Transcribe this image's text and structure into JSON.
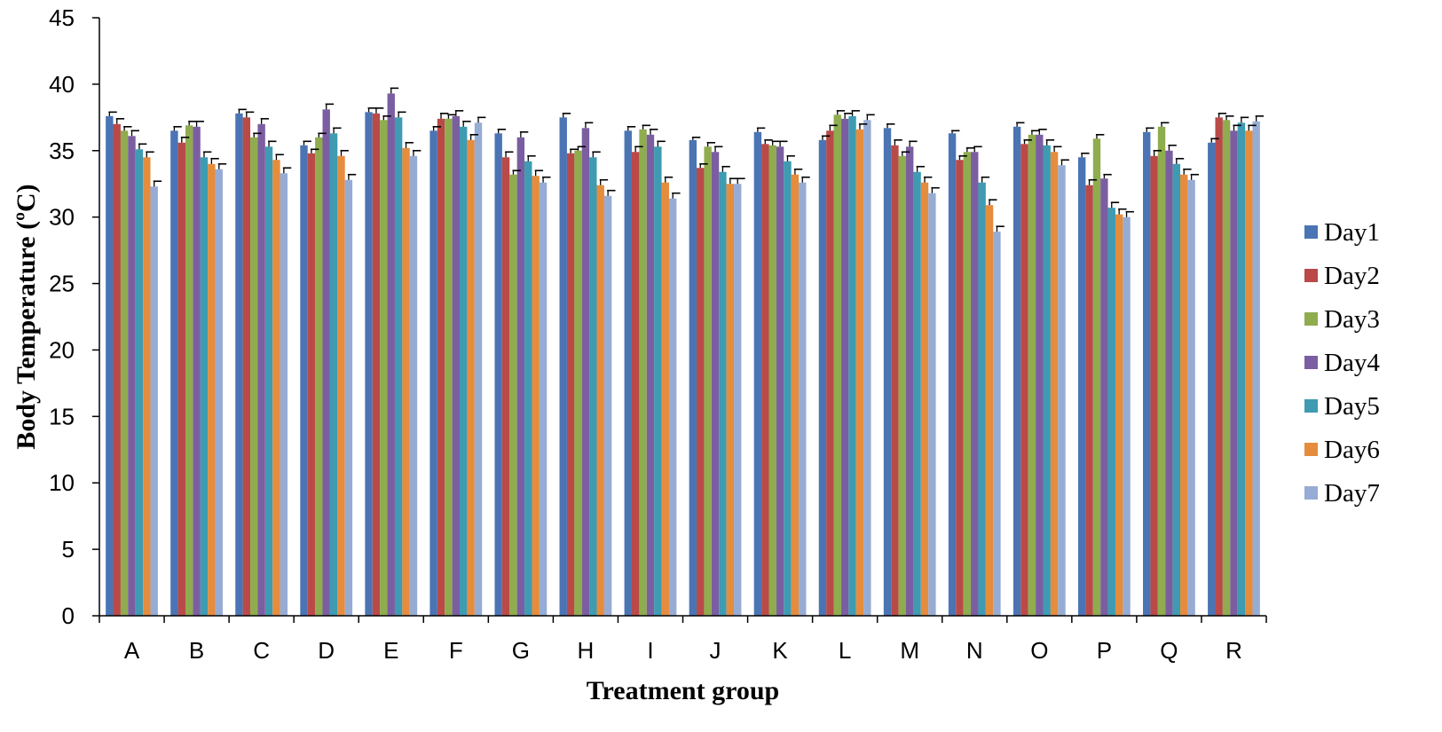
{
  "chart_data": {
    "type": "bar",
    "xlabel": "Treatment group",
    "ylabel": "Body Temperature (ºC)",
    "ylim": [
      0,
      45
    ],
    "yticks": [
      0,
      5,
      10,
      15,
      20,
      25,
      30,
      35,
      40,
      45
    ],
    "grid": false,
    "legend_position": "right",
    "error_bars": true,
    "categories": [
      "A",
      "B",
      "C",
      "D",
      "E",
      "F",
      "G",
      "H",
      "I",
      "J",
      "K",
      "L",
      "M",
      "N",
      "O",
      "P",
      "Q",
      "R"
    ],
    "series": [
      {
        "name": "Day1",
        "color": "#4a74b4",
        "values": [
          37.6,
          36.5,
          37.8,
          35.4,
          37.9,
          36.5,
          36.3,
          37.5,
          36.5,
          35.8,
          36.4,
          35.8,
          36.7,
          36.3,
          36.8,
          34.5,
          36.4,
          35.6
        ],
        "errors": [
          0.3,
          0.3,
          0.3,
          0.3,
          0.3,
          0.3,
          0.3,
          0.3,
          0.3,
          0.2,
          0.3,
          0.3,
          0.3,
          0.2,
          0.3,
          0.3,
          0.3,
          0.3
        ]
      },
      {
        "name": "Day2",
        "color": "#b94a48",
        "values": [
          37.0,
          35.6,
          37.5,
          34.8,
          37.8,
          37.4,
          34.5,
          34.8,
          34.9,
          33.7,
          35.5,
          36.5,
          35.4,
          34.3,
          35.5,
          32.4,
          34.6,
          37.5
        ],
        "errors": [
          0.4,
          0.4,
          0.4,
          0.3,
          0.4,
          0.4,
          0.4,
          0.3,
          0.4,
          0.3,
          0.3,
          0.4,
          0.4,
          0.3,
          0.3,
          0.4,
          0.4,
          0.3
        ]
      },
      {
        "name": "Day3",
        "color": "#8fac4e",
        "values": [
          36.5,
          36.9,
          36.0,
          36.0,
          37.3,
          37.4,
          33.2,
          35.0,
          36.6,
          35.3,
          35.4,
          37.7,
          34.6,
          34.9,
          36.2,
          35.9,
          36.8,
          37.3
        ],
        "errors": [
          0.3,
          0.3,
          0.3,
          0.3,
          0.3,
          0.3,
          0.3,
          0.3,
          0.3,
          0.3,
          0.3,
          0.3,
          0.3,
          0.3,
          0.3,
          0.3,
          0.3,
          0.3
        ]
      },
      {
        "name": "Day4",
        "color": "#7b5ea1",
        "values": [
          36.1,
          36.8,
          37.0,
          38.1,
          39.3,
          37.6,
          36.0,
          36.7,
          36.2,
          34.9,
          35.3,
          37.4,
          35.3,
          34.9,
          36.2,
          32.9,
          35.0,
          36.5
        ],
        "errors": [
          0.4,
          0.4,
          0.4,
          0.4,
          0.4,
          0.4,
          0.4,
          0.4,
          0.4,
          0.4,
          0.4,
          0.4,
          0.4,
          0.4,
          0.4,
          0.3,
          0.4,
          0.4
        ]
      },
      {
        "name": "Day5",
        "color": "#3e9bb2",
        "values": [
          35.1,
          34.5,
          35.3,
          36.3,
          37.5,
          36.8,
          34.2,
          34.5,
          35.3,
          33.4,
          34.2,
          37.6,
          33.4,
          32.6,
          35.4,
          30.7,
          34.0,
          37.1
        ],
        "errors": [
          0.4,
          0.4,
          0.4,
          0.4,
          0.4,
          0.4,
          0.4,
          0.4,
          0.4,
          0.4,
          0.4,
          0.4,
          0.4,
          0.4,
          0.4,
          0.4,
          0.4,
          0.4
        ]
      },
      {
        "name": "Day6",
        "color": "#e58c3d",
        "values": [
          34.5,
          34.0,
          34.3,
          34.6,
          35.2,
          35.8,
          33.1,
          32.4,
          32.6,
          32.5,
          33.2,
          36.6,
          32.6,
          30.9,
          34.9,
          30.2,
          33.2,
          36.5
        ],
        "errors": [
          0.4,
          0.4,
          0.4,
          0.4,
          0.4,
          0.4,
          0.4,
          0.4,
          0.4,
          0.4,
          0.4,
          0.4,
          0.4,
          0.4,
          0.4,
          0.4,
          0.4,
          0.4
        ]
      },
      {
        "name": "Day7",
        "color": "#97acd4",
        "values": [
          32.3,
          33.6,
          33.3,
          32.8,
          34.6,
          37.1,
          32.6,
          31.6,
          31.4,
          32.5,
          32.6,
          37.3,
          31.8,
          28.9,
          33.9,
          30.0,
          32.8,
          37.2
        ],
        "errors": [
          0.4,
          0.4,
          0.4,
          0.4,
          0.4,
          0.4,
          0.4,
          0.4,
          0.4,
          0.4,
          0.4,
          0.4,
          0.4,
          0.4,
          0.4,
          0.4,
          0.4,
          0.4
        ]
      }
    ]
  }
}
